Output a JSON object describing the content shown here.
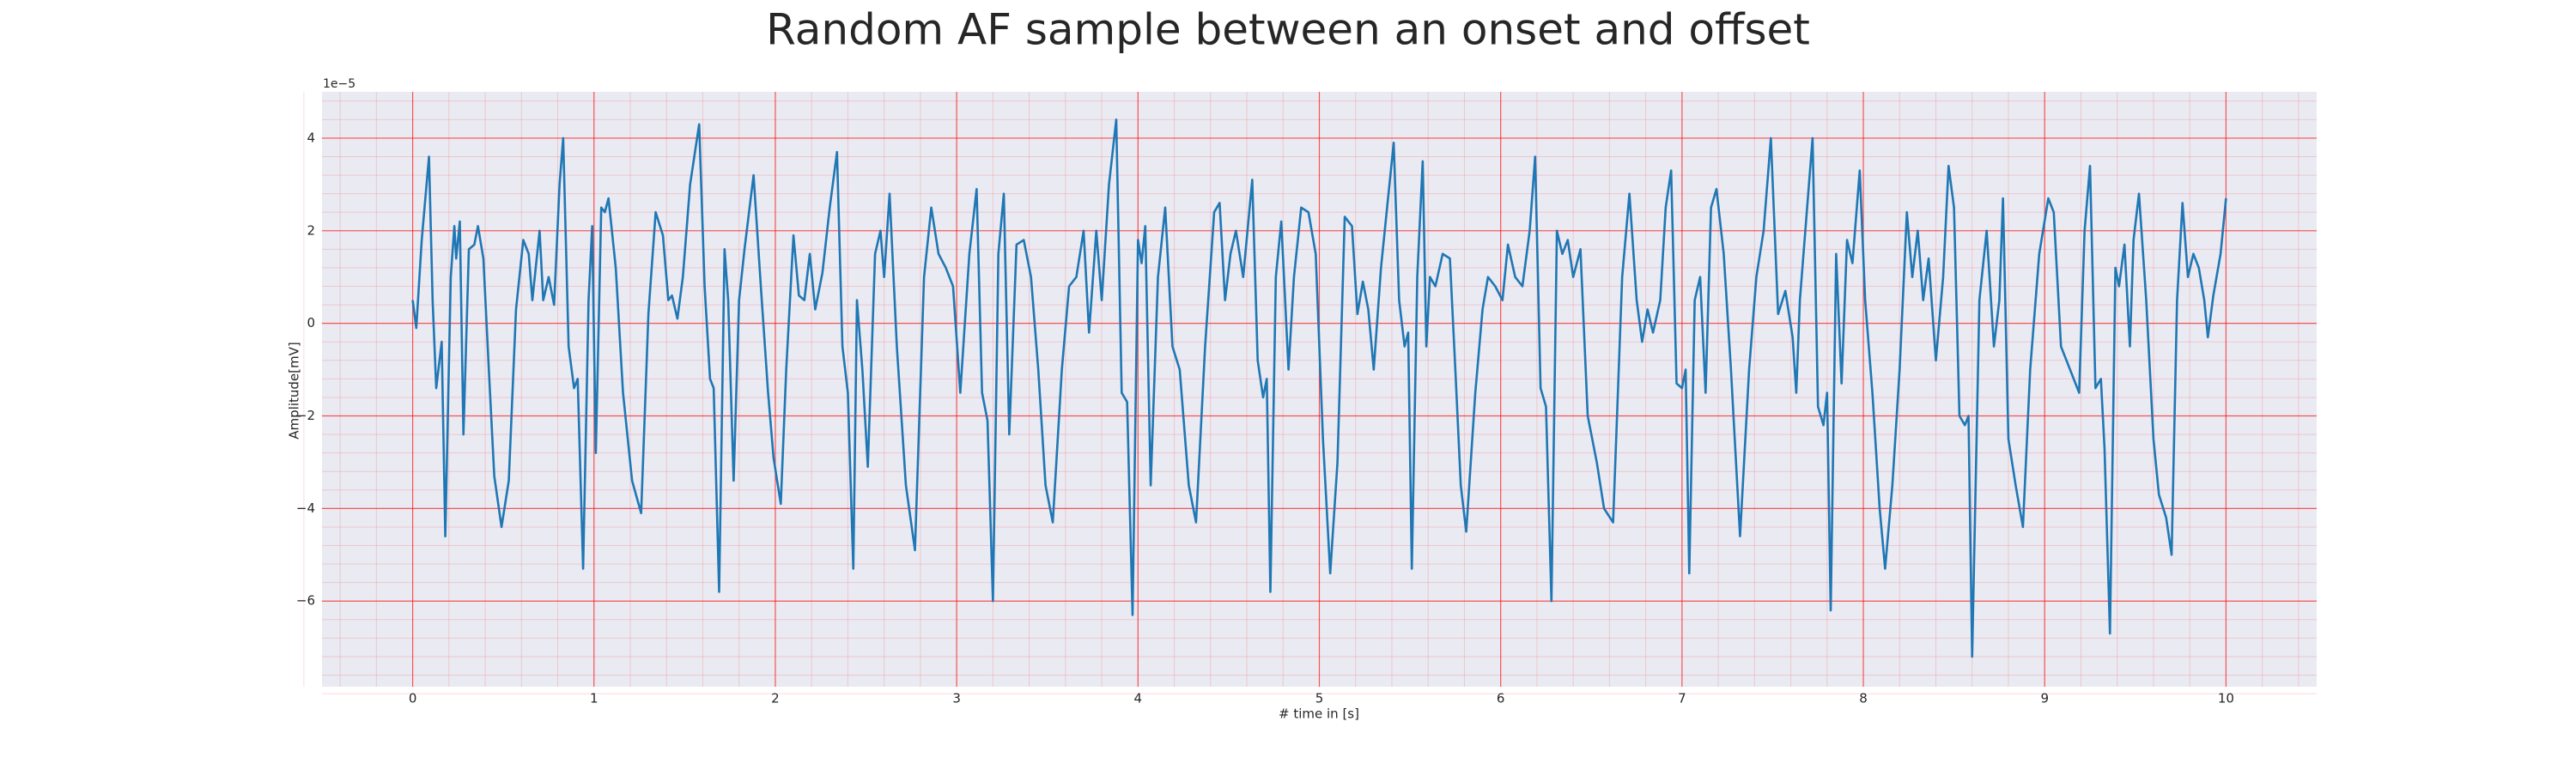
{
  "chart_data": {
    "type": "line",
    "title": "Random AF sample between an onset and offset",
    "xlabel": "# time in [s]",
    "ylabel": "Amplitude[mV]",
    "y_offset_label": "1e−5",
    "xlim": [
      -0.5,
      10.5
    ],
    "ylim": [
      -7.85,
      5.0
    ],
    "xticks": [
      0,
      1,
      2,
      3,
      4,
      5,
      6,
      7,
      8,
      9,
      10
    ],
    "yticks": [
      {
        "value": -6,
        "label": "−6"
      },
      {
        "value": -4,
        "label": "−4"
      },
      {
        "value": -2,
        "label": "−2"
      },
      0,
      2,
      4
    ],
    "grid": true,
    "grid_color": "#ff0000",
    "minor_grid": true,
    "background": "#eaeaf2",
    "x": [
      0,
      0.02,
      0.05,
      0.09,
      0.11,
      0.13,
      0.16,
      0.18,
      0.21,
      0.23,
      0.24,
      0.26,
      0.28,
      0.31,
      0.34,
      0.36,
      0.39,
      0.42,
      0.45,
      0.49,
      0.53,
      0.57,
      0.61,
      0.64,
      0.66,
      0.7,
      0.72,
      0.75,
      0.78,
      0.81,
      0.83,
      0.86,
      0.89,
      0.91,
      0.94,
      0.97,
      0.99,
      1.01,
      1.04,
      1.06,
      1.08,
      1.12,
      1.16,
      1.21,
      1.26,
      1.3,
      1.34,
      1.38,
      1.41,
      1.43,
      1.46,
      1.49,
      1.53,
      1.58,
      1.61,
      1.64,
      1.66,
      1.69,
      1.72,
      1.74,
      1.77,
      1.8,
      1.83,
      1.88,
      1.92,
      1.96,
      1.99,
      2.03,
      2.06,
      2.1,
      2.13,
      2.16,
      2.19,
      2.22,
      2.26,
      2.3,
      2.34,
      2.37,
      2.4,
      2.43,
      2.45,
      2.48,
      2.51,
      2.55,
      2.58,
      2.6,
      2.63,
      2.67,
      2.72,
      2.77,
      2.82,
      2.86,
      2.9,
      2.94,
      2.98,
      3.02,
      3.07,
      3.11,
      3.14,
      3.17,
      3.2,
      3.23,
      3.26,
      3.29,
      3.33,
      3.37,
      3.41,
      3.45,
      3.49,
      3.53,
      3.58,
      3.62,
      3.66,
      3.7,
      3.73,
      3.77,
      3.8,
      3.84,
      3.88,
      3.91,
      3.94,
      3.97,
      4.0,
      4.02,
      4.04,
      4.07,
      4.11,
      4.15,
      4.19,
      4.23,
      4.28,
      4.32,
      4.37,
      4.42,
      4.45,
      4.48,
      4.51,
      4.54,
      4.58,
      4.63,
      4.66,
      4.69,
      4.71,
      4.73,
      4.76,
      4.79,
      4.83,
      4.86,
      4.9,
      4.94,
      4.98,
      5.02,
      5.06,
      5.1,
      5.14,
      5.18,
      5.21,
      5.24,
      5.27,
      5.3,
      5.34,
      5.41,
      5.44,
      5.47,
      5.49,
      5.51,
      5.54,
      5.57,
      5.59,
      5.61,
      5.64,
      5.68,
      5.72,
      5.75,
      5.78,
      5.81,
      5.86,
      5.9,
      5.93,
      5.97,
      6.01,
      6.04,
      6.08,
      6.12,
      6.16,
      6.19,
      6.22,
      6.25,
      6.28,
      6.31,
      6.34,
      6.37,
      6.4,
      6.44,
      6.48,
      6.53,
      6.57,
      6.62,
      6.67,
      6.71,
      6.75,
      6.78,
      6.81,
      6.84,
      6.88,
      6.91,
      6.94,
      6.97,
      7.0,
      7.02,
      7.04,
      7.07,
      7.1,
      7.13,
      7.16,
      7.19,
      7.23,
      7.27,
      7.32,
      7.37,
      7.41,
      7.45,
      7.49,
      7.53,
      7.57,
      7.61,
      7.63,
      7.65,
      7.68,
      7.72,
      7.75,
      7.78,
      7.8,
      7.82,
      7.85,
      7.88,
      7.91,
      7.94,
      7.98,
      8.01,
      8.05,
      8.09,
      8.12,
      8.16,
      8.2,
      8.24,
      8.27,
      8.3,
      8.33,
      8.36,
      8.4,
      8.44,
      8.47,
      8.5,
      8.53,
      8.56,
      8.58,
      8.6,
      8.64,
      8.68,
      8.72,
      8.75,
      8.77,
      8.8,
      8.84,
      8.88,
      8.92,
      8.97,
      9.02,
      9.05,
      9.09,
      9.14,
      9.19,
      9.22,
      9.25,
      9.28,
      9.31,
      9.33,
      9.36,
      9.39,
      9.41,
      9.44,
      9.47,
      9.49,
      9.52,
      9.56,
      9.6,
      9.63,
      9.67,
      9.7,
      9.73,
      9.76,
      9.79,
      9.82,
      9.85,
      9.88,
      9.9,
      9.93,
      9.97,
      10.0
    ],
    "series": [
      {
        "color": "#1f77b4",
        "values": [
          0.5,
          -0.1,
          1.8,
          3.6,
          0.5,
          -1.4,
          -0.4,
          -4.6,
          1.0,
          2.1,
          1.4,
          2.2,
          -2.4,
          1.6,
          1.7,
          2.1,
          1.4,
          -1.0,
          -3.3,
          -4.4,
          -3.4,
          0.3,
          1.8,
          1.5,
          0.5,
          2.0,
          0.5,
          1.0,
          0.4,
          3.0,
          4.0,
          -0.5,
          -1.4,
          -1.2,
          -5.3,
          0.5,
          2.1,
          -2.8,
          2.5,
          2.4,
          2.7,
          1.2,
          -1.5,
          -3.4,
          -4.1,
          0.2,
          2.4,
          1.9,
          0.5,
          0.6,
          0.1,
          1.0,
          3.0,
          4.3,
          0.8,
          -1.2,
          -1.4,
          -5.8,
          1.6,
          0.5,
          -3.4,
          0.5,
          1.6,
          3.2,
          0.8,
          -1.5,
          -2.9,
          -3.9,
          -1.0,
          1.9,
          0.6,
          0.5,
          1.5,
          0.3,
          1.1,
          2.5,
          3.7,
          -0.5,
          -1.5,
          -5.3,
          0.5,
          -1.0,
          -3.1,
          1.5,
          2.0,
          1.0,
          2.8,
          -0.5,
          -3.5,
          -4.9,
          1.0,
          2.5,
          1.5,
          1.2,
          0.8,
          -1.5,
          1.5,
          2.9,
          -1.5,
          -2.1,
          -6.0,
          1.5,
          2.8,
          -2.4,
          1.7,
          1.8,
          1.0,
          -1.0,
          -3.5,
          -4.3,
          -1.0,
          0.8,
          1.0,
          2.0,
          -0.2,
          2.0,
          0.5,
          3.0,
          4.4,
          -1.5,
          -1.7,
          -6.3,
          1.8,
          1.3,
          2.1,
          -3.5,
          1.0,
          2.5,
          -0.5,
          -1.0,
          -3.5,
          -4.3,
          -0.5,
          2.4,
          2.6,
          0.5,
          1.5,
          2.0,
          1.0,
          3.1,
          -0.8,
          -1.6,
          -1.2,
          -5.8,
          1.0,
          2.2,
          -1.0,
          1.0,
          2.5,
          2.4,
          1.5,
          -2.5,
          -5.4,
          -3.0,
          2.3,
          2.1,
          0.2,
          0.9,
          0.3,
          -1.0,
          1.2,
          3.9,
          0.5,
          -0.5,
          -0.2,
          -5.3,
          1.0,
          3.5,
          -0.5,
          1.0,
          0.8,
          1.5,
          1.4,
          -1.0,
          -3.5,
          -4.5,
          -1.5,
          0.3,
          1.0,
          0.8,
          0.5,
          1.7,
          1.0,
          0.8,
          2.0,
          3.6,
          -1.4,
          -1.8,
          -6.0,
          2.0,
          1.5,
          1.8,
          1.0,
          1.6,
          -2.0,
          -3.0,
          -4.0,
          -4.3,
          1.0,
          2.8,
          0.5,
          -0.4,
          0.3,
          -0.2,
          0.5,
          2.5,
          3.3,
          -1.3,
          -1.4,
          -1.0,
          -5.4,
          0.5,
          1.0,
          -1.5,
          2.5,
          2.9,
          1.5,
          -1.0,
          -4.6,
          -1.0,
          1.0,
          2.0,
          4.0,
          0.2,
          0.7,
          -0.3,
          -1.5,
          0.5,
          2.0,
          4.0,
          -1.8,
          -2.2,
          -1.5,
          -6.2,
          1.5,
          -1.3,
          1.8,
          1.3,
          3.3,
          0.5,
          -1.5,
          -4.0,
          -5.3,
          -3.5,
          -1.0,
          2.4,
          1.0,
          2.0,
          0.5,
          1.4,
          -0.8,
          1.0,
          3.4,
          2.5,
          -2.0,
          -2.2,
          -2.0,
          -7.2,
          0.5,
          2.0,
          -0.5,
          0.5,
          2.7,
          -2.5,
          -3.5,
          -4.4,
          -1.0,
          1.5,
          2.7,
          2.4,
          -0.5,
          -1.0,
          -1.5,
          2.0,
          3.4,
          -1.4,
          -1.2,
          -2.7,
          -6.7,
          1.2,
          0.8,
          1.7,
          -0.5,
          1.8,
          2.8,
          0.5,
          -2.5,
          -3.7,
          -4.2,
          -5.0,
          0.5,
          2.6,
          1.0,
          1.5,
          1.2,
          0.5,
          -0.3,
          0.6,
          1.5,
          2.7
        ]
      }
    ]
  }
}
